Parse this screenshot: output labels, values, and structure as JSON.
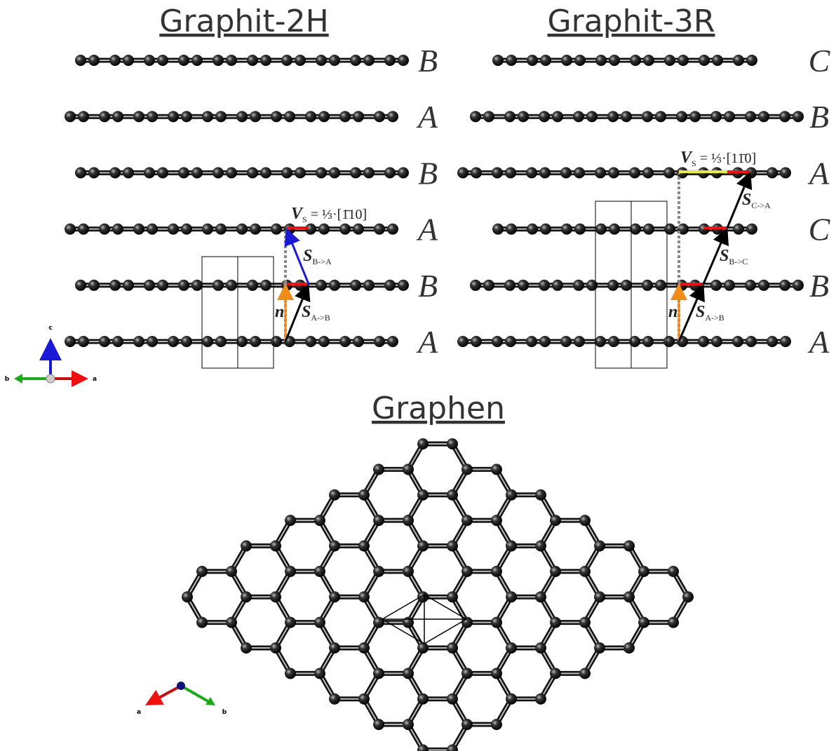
{
  "graphit_2h": {
    "title": "Graphit-2H",
    "layers": [
      "B",
      "A",
      "B",
      "A",
      "B",
      "A"
    ],
    "vs_label": {
      "main": "V",
      "sub": "S",
      "rest": " = ⅓·[1̄10]"
    },
    "s_b_a": {
      "main": "S",
      "sub": "B->A"
    },
    "s_a_b": {
      "main": "S",
      "sub": "A->B"
    },
    "n": "n"
  },
  "graphit_3r": {
    "title": "Graphit-3R",
    "layers": [
      "C",
      "B",
      "A",
      "C",
      "B",
      "A"
    ],
    "vs_label": {
      "main": "V",
      "sub": "S",
      "rest": " = ⅓·[11̄0]"
    },
    "s_c_a": {
      "main": "S",
      "sub": "C->A"
    },
    "s_b_c": {
      "main": "S",
      "sub": "B->C"
    },
    "s_a_b": {
      "main": "S",
      "sub": "A->B"
    },
    "n": "n"
  },
  "side_axes": {
    "c": "c",
    "b": "b",
    "a": "a"
  },
  "graphen": {
    "title": "Graphen"
  },
  "top_axes": {
    "a": "a",
    "b": "b"
  }
}
